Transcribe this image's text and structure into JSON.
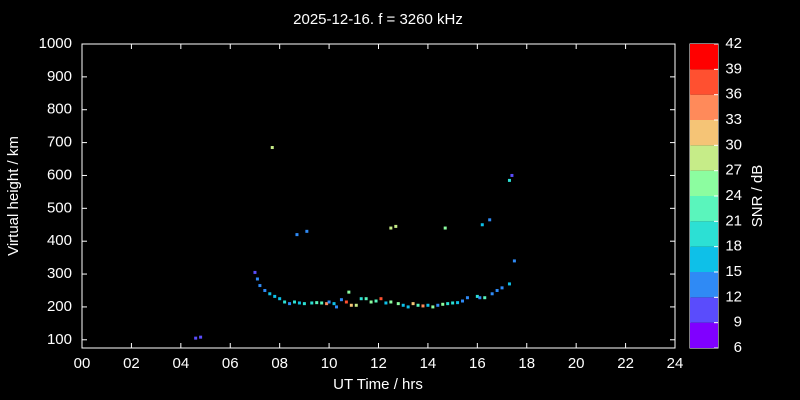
{
  "chart_data": {
    "type": "scatter",
    "title": "2025-12-16. f = 3260 kHz",
    "x_label": "UT Time / hrs",
    "y_label": "Virtual height / km",
    "x": [
      4.6,
      4.8,
      7.0,
      7.1,
      7.2,
      7.4,
      7.7,
      7.6,
      7.8,
      8.0,
      8.2,
      8.4,
      8.6,
      8.7,
      8.8,
      9.0,
      9.1,
      9.3,
      9.5,
      9.7,
      9.9,
      10.0,
      10.2,
      10.3,
      10.5,
      10.7,
      10.8,
      10.9,
      11.1,
      11.3,
      11.5,
      11.7,
      11.9,
      12.1,
      12.3,
      12.5,
      12.5,
      12.7,
      12.8,
      13.0,
      13.2,
      13.4,
      13.6,
      13.8,
      14.0,
      14.2,
      14.4,
      14.6,
      14.7,
      14.8,
      15.0,
      15.2,
      15.4,
      15.6,
      16.0,
      16.1,
      16.2,
      16.3,
      16.5,
      16.6,
      16.8,
      17.0,
      17.3,
      17.3,
      17.4,
      17.5
    ],
    "values": [
      105,
      108,
      305,
      285,
      265,
      250,
      685,
      240,
      232,
      225,
      215,
      210,
      215,
      420,
      212,
      210,
      430,
      212,
      213,
      212,
      210,
      215,
      210,
      200,
      222,
      215,
      245,
      205,
      205,
      225,
      225,
      215,
      218,
      225,
      212,
      215,
      440,
      445,
      210,
      205,
      200,
      210,
      205,
      203,
      205,
      200,
      205,
      208,
      440,
      210,
      212,
      213,
      218,
      228,
      232,
      228,
      450,
      228,
      465,
      240,
      250,
      258,
      270,
      585,
      600,
      340
    ],
    "snr": [
      10,
      11,
      11,
      12,
      12,
      14,
      27,
      16,
      17,
      16,
      18,
      13,
      20,
      12,
      16,
      18,
      14,
      20,
      22,
      23,
      34,
      12,
      16,
      12,
      13,
      38,
      25,
      30,
      28,
      20,
      22,
      24,
      22,
      36,
      17,
      24,
      27,
      28,
      26,
      15,
      16,
      30,
      22,
      33,
      16,
      24,
      14,
      25,
      24,
      18,
      20,
      17,
      14,
      14,
      18,
      14,
      15,
      22,
      13,
      12,
      14,
      14,
      15,
      20,
      9,
      12
    ],
    "xlim": [
      0,
      24
    ],
    "xticks": [
      {
        "value": 0,
        "label": "00"
      },
      {
        "value": 2,
        "label": "02"
      },
      {
        "value": 4,
        "label": "04"
      },
      {
        "value": 6,
        "label": "06"
      },
      {
        "value": 8,
        "label": "08"
      },
      {
        "value": 10,
        "label": "10"
      },
      {
        "value": 12,
        "label": "12"
      },
      {
        "value": 14,
        "label": "14"
      },
      {
        "value": 16,
        "label": "16"
      },
      {
        "value": 18,
        "label": "18"
      },
      {
        "value": 20,
        "label": "20"
      },
      {
        "value": 22,
        "label": "22"
      },
      {
        "value": 24,
        "label": "24"
      }
    ],
    "ylim": [
      75,
      1000
    ],
    "yticks": [
      100,
      200,
      300,
      400,
      500,
      600,
      700,
      800,
      900,
      1000
    ],
    "colorbar": {
      "label": "SNR / dB",
      "lim": [
        6,
        42
      ],
      "ticks": [
        6,
        9,
        12,
        15,
        18,
        21,
        24,
        27,
        30,
        33,
        36,
        39,
        42
      ],
      "colors": [
        "#8000ff",
        "#5a4cfc",
        "#2f8af5",
        "#0ec0e8",
        "#2ce0d4",
        "#5af5bc",
        "#8cfda0",
        "#c6ec88",
        "#f5c476",
        "#ff8a5a",
        "#ff5030",
        "#ff0000"
      ]
    }
  }
}
